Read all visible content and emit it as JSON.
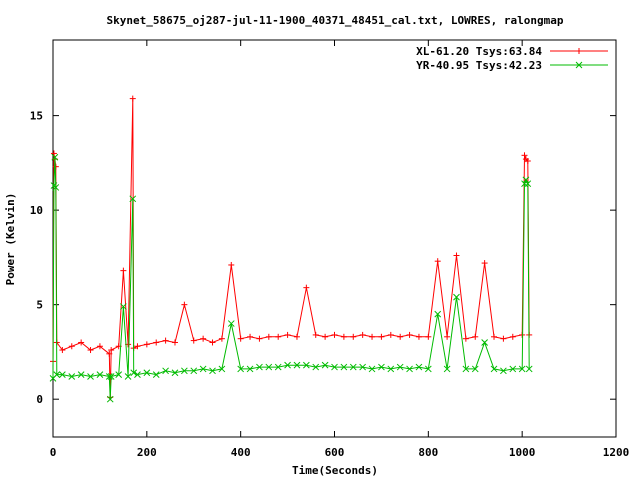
{
  "chart_data": {
    "type": "line",
    "title": "Skynet_58675_oj287-jul-11-1900_40371_48451_cal.txt, LOWRES, ralongmap",
    "xlabel": "Time(Seconds)",
    "ylabel": "Power (Kelvin)",
    "xlim": [
      0,
      1200
    ],
    "ylim": [
      -2,
      19
    ],
    "xticks": [
      0,
      200,
      400,
      600,
      800,
      1000,
      1200
    ],
    "yticks": [
      0,
      5,
      10,
      15
    ],
    "grid": false,
    "legend_position": "top-right",
    "series": [
      {
        "name": "XL-61.20 Tsys:63.84",
        "color": "#ff0000",
        "marker": "plus",
        "x": [
          0,
          2,
          4,
          6,
          8,
          20,
          40,
          60,
          80,
          100,
          120,
          122,
          124,
          140,
          150,
          160,
          170,
          172,
          180,
          200,
          220,
          240,
          260,
          280,
          300,
          320,
          340,
          360,
          380,
          400,
          420,
          440,
          460,
          480,
          500,
          520,
          540,
          560,
          580,
          600,
          620,
          640,
          660,
          680,
          700,
          720,
          740,
          760,
          780,
          800,
          820,
          840,
          860,
          880,
          900,
          920,
          940,
          960,
          980,
          1000,
          1005,
          1008,
          1012,
          1015
        ],
        "y": [
          2.0,
          13.0,
          12.7,
          12.3,
          3.0,
          2.6,
          2.8,
          3.0,
          2.6,
          2.8,
          2.4,
          0.1,
          2.6,
          2.8,
          6.8,
          2.9,
          15.9,
          2.7,
          2.8,
          2.9,
          3.0,
          3.1,
          3.0,
          5.0,
          3.1,
          3.2,
          3.0,
          3.2,
          7.1,
          3.2,
          3.3,
          3.2,
          3.3,
          3.3,
          3.4,
          3.3,
          5.9,
          3.4,
          3.3,
          3.4,
          3.3,
          3.3,
          3.4,
          3.3,
          3.3,
          3.4,
          3.3,
          3.4,
          3.3,
          3.3,
          7.3,
          3.3,
          7.6,
          3.2,
          3.3,
          7.2,
          3.3,
          3.2,
          3.3,
          3.4,
          12.9,
          12.7,
          12.6,
          3.4
        ]
      },
      {
        "name": "YR-40.95 Tsys:42.23",
        "color": "#00bb00",
        "marker": "cross",
        "x": [
          0,
          2,
          4,
          6,
          8,
          20,
          40,
          60,
          80,
          100,
          120,
          122,
          124,
          140,
          150,
          160,
          170,
          172,
          180,
          200,
          220,
          240,
          260,
          280,
          300,
          320,
          340,
          360,
          380,
          400,
          420,
          440,
          460,
          480,
          500,
          520,
          540,
          560,
          580,
          600,
          620,
          640,
          660,
          680,
          700,
          720,
          740,
          760,
          780,
          800,
          820,
          840,
          860,
          880,
          900,
          920,
          940,
          960,
          980,
          1000,
          1005,
          1008,
          1012,
          1015
        ],
        "y": [
          1.1,
          11.3,
          12.8,
          11.2,
          1.3,
          1.3,
          1.2,
          1.3,
          1.2,
          1.3,
          1.2,
          0.0,
          1.2,
          1.3,
          4.9,
          1.2,
          10.6,
          1.4,
          1.3,
          1.4,
          1.3,
          1.5,
          1.4,
          1.5,
          1.5,
          1.6,
          1.5,
          1.6,
          4.0,
          1.6,
          1.6,
          1.7,
          1.7,
          1.7,
          1.8,
          1.8,
          1.8,
          1.7,
          1.8,
          1.7,
          1.7,
          1.7,
          1.7,
          1.6,
          1.7,
          1.6,
          1.7,
          1.6,
          1.7,
          1.6,
          4.5,
          1.6,
          5.4,
          1.6,
          1.6,
          3.0,
          1.6,
          1.5,
          1.6,
          1.6,
          11.4,
          11.6,
          11.4,
          1.6
        ]
      }
    ]
  }
}
